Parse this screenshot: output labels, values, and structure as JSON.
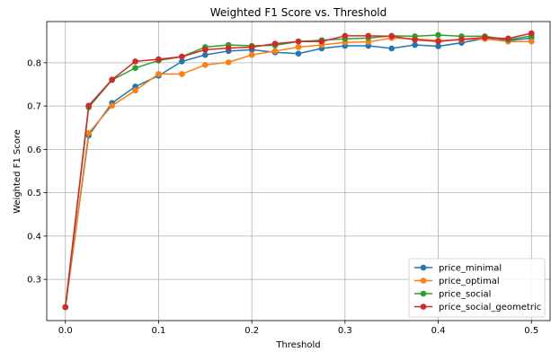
{
  "chart_data": {
    "type": "line",
    "title": "Weighted F1 Score vs. Threshold",
    "xlabel": "Threshold",
    "ylabel": "Weighted F1 Score",
    "xlim": [
      -0.02,
      0.52
    ],
    "ylim": [
      0.205,
      0.895
    ],
    "xticks": [
      "0.0",
      "0.1",
      "0.2",
      "0.3",
      "0.4",
      "0.5"
    ],
    "xtick_values": [
      0.0,
      0.1,
      0.2,
      0.3,
      0.4,
      0.5
    ],
    "yticks": [
      "0.3",
      "0.4",
      "0.5",
      "0.6",
      "0.7",
      "0.8"
    ],
    "ytick_values": [
      0.3,
      0.4,
      0.5,
      0.6,
      0.7,
      0.8
    ],
    "grid": true,
    "legend_position": "lower-right",
    "x": [
      0.0,
      0.025,
      0.05,
      0.075,
      0.1,
      0.125,
      0.15,
      0.175,
      0.2,
      0.225,
      0.25,
      0.275,
      0.3,
      0.325,
      0.35,
      0.375,
      0.4,
      0.425,
      0.45,
      0.475,
      0.5
    ],
    "series": [
      {
        "name": "price_minimal",
        "color": "#1f77b4",
        "values": [
          0.236,
          0.632,
          0.707,
          0.745,
          0.77,
          0.803,
          0.818,
          0.827,
          0.83,
          0.824,
          0.821,
          0.833,
          0.839,
          0.839,
          0.833,
          0.841,
          0.838,
          0.846,
          0.856,
          0.851,
          0.857
        ]
      },
      {
        "name": "price_optimal",
        "color": "#ff7f0e",
        "values": [
          0.236,
          0.638,
          0.701,
          0.736,
          0.774,
          0.774,
          0.795,
          0.801,
          0.818,
          0.827,
          0.836,
          0.841,
          0.847,
          0.848,
          0.857,
          0.855,
          0.851,
          0.853,
          0.855,
          0.849,
          0.849
        ]
      },
      {
        "name": "price_social",
        "color": "#2ca02c",
        "values": [
          0.236,
          0.697,
          0.76,
          0.788,
          0.805,
          0.814,
          0.836,
          0.841,
          0.839,
          0.84,
          0.849,
          0.852,
          0.855,
          0.857,
          0.862,
          0.861,
          0.864,
          0.861,
          0.861,
          0.853,
          0.862
        ]
      },
      {
        "name": "price_social_geometric",
        "color": "#d62728",
        "values": [
          0.236,
          0.701,
          0.761,
          0.803,
          0.808,
          0.814,
          0.83,
          0.834,
          0.836,
          0.844,
          0.849,
          0.849,
          0.862,
          0.862,
          0.861,
          0.853,
          0.849,
          0.854,
          0.858,
          0.856,
          0.868
        ]
      }
    ]
  }
}
